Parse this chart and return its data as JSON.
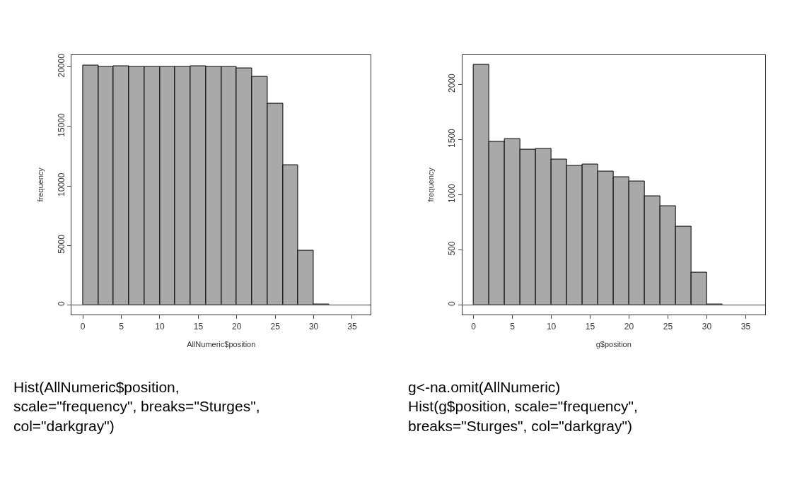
{
  "chart_data": [
    {
      "type": "histogram",
      "xlabel": "AllNumeric$position",
      "ylabel": "frequency",
      "bins": [
        0,
        2,
        4,
        6,
        8,
        10,
        12,
        14,
        16,
        18,
        20,
        22,
        24,
        26,
        28,
        30,
        32
      ],
      "values": [
        20130,
        20020,
        20060,
        19980,
        20020,
        20020,
        20000,
        20060,
        20000,
        20000,
        19880,
        19180,
        16890,
        11780,
        4570,
        30
      ],
      "color": "#a9a9a9",
      "xlim": [
        -1.45,
        37.4
      ],
      "ylim": [
        -805,
        21010
      ],
      "xticks": [
        0,
        5,
        10,
        15,
        20,
        25,
        30,
        35
      ],
      "yticks": [
        0,
        5000,
        10000,
        15000,
        20000
      ],
      "ref_lines": [
        {
          "axis": "y",
          "value": 0,
          "color": "#808080"
        }
      ],
      "annotations": [
        "Hist(AllNumeric$position, scale=\"frequency\", breaks=\"Sturges\", col=\"darkgray\")"
      ]
    },
    {
      "type": "histogram",
      "xlabel": "g$position",
      "ylabel": "frequency",
      "bins": [
        0,
        2,
        4,
        6,
        8,
        10,
        12,
        14,
        16,
        18,
        20,
        22,
        24,
        26,
        28,
        30,
        32
      ],
      "values": [
        2180,
        1481,
        1505,
        1407,
        1413,
        1317,
        1260,
        1274,
        1211,
        1162,
        1121,
        988,
        896,
        712,
        294,
        5
      ],
      "color": "#a9a9a9",
      "xlim": [
        -1.45,
        37.5
      ],
      "ylim": [
        -88,
        2268
      ],
      "xticks": [
        0,
        5,
        10,
        15,
        20,
        25,
        30,
        35
      ],
      "yticks": [
        0,
        500,
        1000,
        1500,
        2000
      ],
      "ref_lines": [
        {
          "axis": "y",
          "value": 0,
          "color": "#808080"
        }
      ],
      "annotations": [
        "g<-na.omit(AllNumeric)",
        "Hist(g$position, scale=\"frequency\", breaks=\"Sturges\", col=\"darkgray\")"
      ]
    }
  ]
}
